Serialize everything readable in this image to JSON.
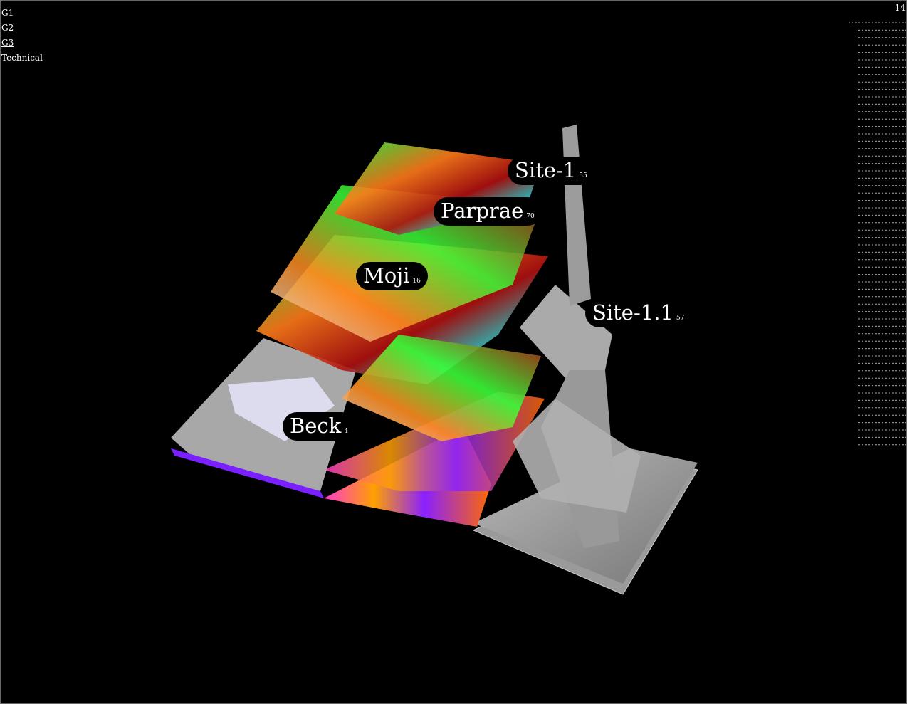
{
  "menu": {
    "items": [
      "G1",
      "G2",
      "G3",
      "Technical"
    ]
  },
  "corner": {
    "count": "14"
  },
  "labels": [
    {
      "name": "Site-1",
      "count": 55
    },
    {
      "name": "Parprae",
      "count": 70
    },
    {
      "name": "Moji",
      "count": 16
    },
    {
      "name": "Site-1.1",
      "count": 57
    },
    {
      "name": "Beck",
      "count": 4
    }
  ]
}
